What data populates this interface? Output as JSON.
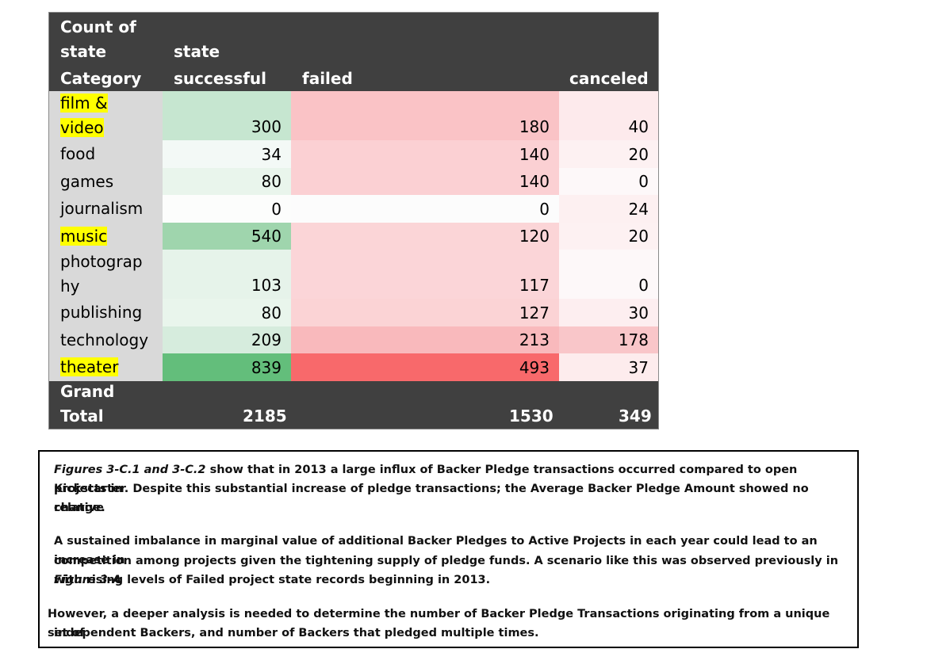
{
  "pivot": {
    "corner": [
      "Count of",
      "state"
    ],
    "col_field": "state",
    "row_field": "Category",
    "columns": [
      "successful",
      "failed",
      "canceled"
    ],
    "rows": [
      {
        "label_lines": [
          "film &",
          "video"
        ],
        "highlight": true,
        "successful": "300",
        "failed": "180",
        "canceled": "40",
        "colors": [
          "#c6e6d0",
          "#fac3c6",
          "#fdeaec"
        ]
      },
      {
        "label_lines": [
          "food"
        ],
        "highlight": false,
        "successful": "34",
        "failed": "140",
        "canceled": "20",
        "colors": [
          "#f3f9f6",
          "#fbd0d3",
          "#fdf1f2"
        ]
      },
      {
        "label_lines": [
          "games"
        ],
        "highlight": false,
        "successful": "80",
        "failed": "140",
        "canceled": "0",
        "colors": [
          "#e9f5ec",
          "#fbd0d3",
          "#fdf8f9"
        ]
      },
      {
        "label_lines": [
          "journalism"
        ],
        "highlight": false,
        "successful": "0",
        "failed": "0",
        "canceled": "24",
        "colors": [
          "#fcfdfc",
          "#fcfcfc",
          "#fdf0f1"
        ]
      },
      {
        "label_lines": [
          "music"
        ],
        "highlight": true,
        "successful": "540",
        "failed": "120",
        "canceled": "20",
        "colors": [
          "#9fd5ad",
          "#fbd5d7",
          "#fdf1f2"
        ]
      },
      {
        "label_lines": [
          "photograp",
          "hy"
        ],
        "highlight": false,
        "successful": "103",
        "failed": "117",
        "canceled": "0",
        "colors": [
          "#e6f3ea",
          "#fbd5d8",
          "#fdf8f9"
        ]
      },
      {
        "label_lines": [
          "publishing"
        ],
        "highlight": false,
        "successful": "80",
        "failed": "127",
        "canceled": "30",
        "colors": [
          "#e9f5ec",
          "#fbd3d5",
          "#fdeef0"
        ]
      },
      {
        "label_lines": [
          "technology"
        ],
        "highlight": false,
        "successful": "209",
        "failed": "213",
        "canceled": "178",
        "colors": [
          "#d6ecdd",
          "#f9b9bc",
          "#f9c6c9"
        ]
      },
      {
        "label_lines": [
          "theater"
        ],
        "highlight": true,
        "successful": "839",
        "failed": "493",
        "canceled": "37",
        "colors": [
          "#63be7b",
          "#f8696b",
          "#fdeced"
        ]
      }
    ],
    "grand_total_lines": [
      "Grand",
      "Total"
    ],
    "totals": {
      "successful": "2185",
      "failed": "1530",
      "canceled": "349"
    }
  },
  "note": {
    "p1_italic": "Figures 3-C.1 and 3-C.2",
    "p1_rest_line1": " show that in 2013 a large influx of Backer Pledge transactions occurred compared to open projects in",
    "p1_line2": "Kickstarter. Despite this substantial increase of pledge transactions; the Average Backer Pledge Amount showed no relative",
    "p1_line3": "change.",
    "p2_line1": "A sustained imbalance in marginal value of additional Backer Pledges to Active Projects in each year could lead to an increase in",
    "p2_line2_pre": "competition among projects given the tightening supply of pledge funds. A scenario like this was observed previously in ",
    "p2_line2_italic": "Figure 3-A",
    "p2_line3": "with rising levels of Failed project state records beginning in 2013.",
    "p3_line1": "However, a deeper analysis is needed to determine the number of Backer Pledge Transactions originating from a unique set of",
    "p3_line2": "independent Backers, and number of Backers that pledged multiple times."
  }
}
